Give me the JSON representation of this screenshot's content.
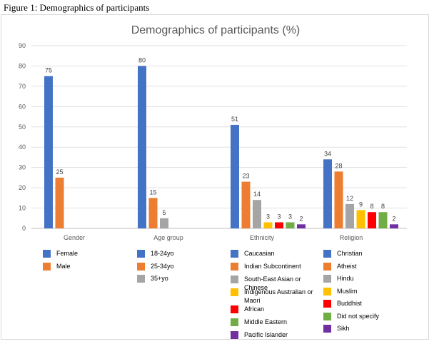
{
  "caption": "Figure 1: Demographics of participants",
  "chart_data": {
    "type": "bar",
    "title": "Demographics of participants (%)",
    "ylim": [
      0,
      90
    ],
    "yticks": [
      0,
      10,
      20,
      30,
      40,
      50,
      60,
      70,
      80,
      90
    ],
    "grid": true,
    "groups": [
      {
        "name": "Gender",
        "bars": [
          {
            "label": "Female",
            "value": 75,
            "color": "#4472c4"
          },
          {
            "label": "Male",
            "value": 25,
            "color": "#ed7d31"
          }
        ]
      },
      {
        "name": "Age group",
        "bars": [
          {
            "label": "18-24yo",
            "value": 80,
            "color": "#4472c4"
          },
          {
            "label": "25-34yo",
            "value": 15,
            "color": "#ed7d31"
          },
          {
            "label": "35+yo",
            "value": 5,
            "color": "#a5a5a5"
          }
        ]
      },
      {
        "name": "Ethnicity",
        "bars": [
          {
            "label": "Caucasian",
            "value": 51,
            "color": "#4472c4"
          },
          {
            "label": "Indian Subcontinent",
            "value": 23,
            "color": "#ed7d31"
          },
          {
            "label": "South-East Asian or Chinese",
            "value": 14,
            "color": "#a5a5a5"
          },
          {
            "label": "Indigenous Australian or Maori",
            "value": 3,
            "color": "#ffc000"
          },
          {
            "label": "African",
            "value": 3,
            "color": "#ff0000"
          },
          {
            "label": "Middle Eastern",
            "value": 3,
            "color": "#70ad47"
          },
          {
            "label": "Pacific Islander",
            "value": 2,
            "color": "#7030a0"
          }
        ]
      },
      {
        "name": "Religion",
        "bars": [
          {
            "label": "Christian",
            "value": 34,
            "color": "#4472c4"
          },
          {
            "label": "Atheist",
            "value": 28,
            "color": "#ed7d31"
          },
          {
            "label": "Hindu",
            "value": 12,
            "color": "#a5a5a5"
          },
          {
            "label": "Muslim",
            "value": 9,
            "color": "#ffc000"
          },
          {
            "label": "Buddhist",
            "value": 8,
            "color": "#ff0000"
          },
          {
            "label": "Did not specify",
            "value": 8,
            "color": "#70ad47"
          },
          {
            "label": "Sikh",
            "value": 2,
            "color": "#7030a0"
          }
        ]
      }
    ],
    "legend_placement": "bottom, one column per group"
  }
}
